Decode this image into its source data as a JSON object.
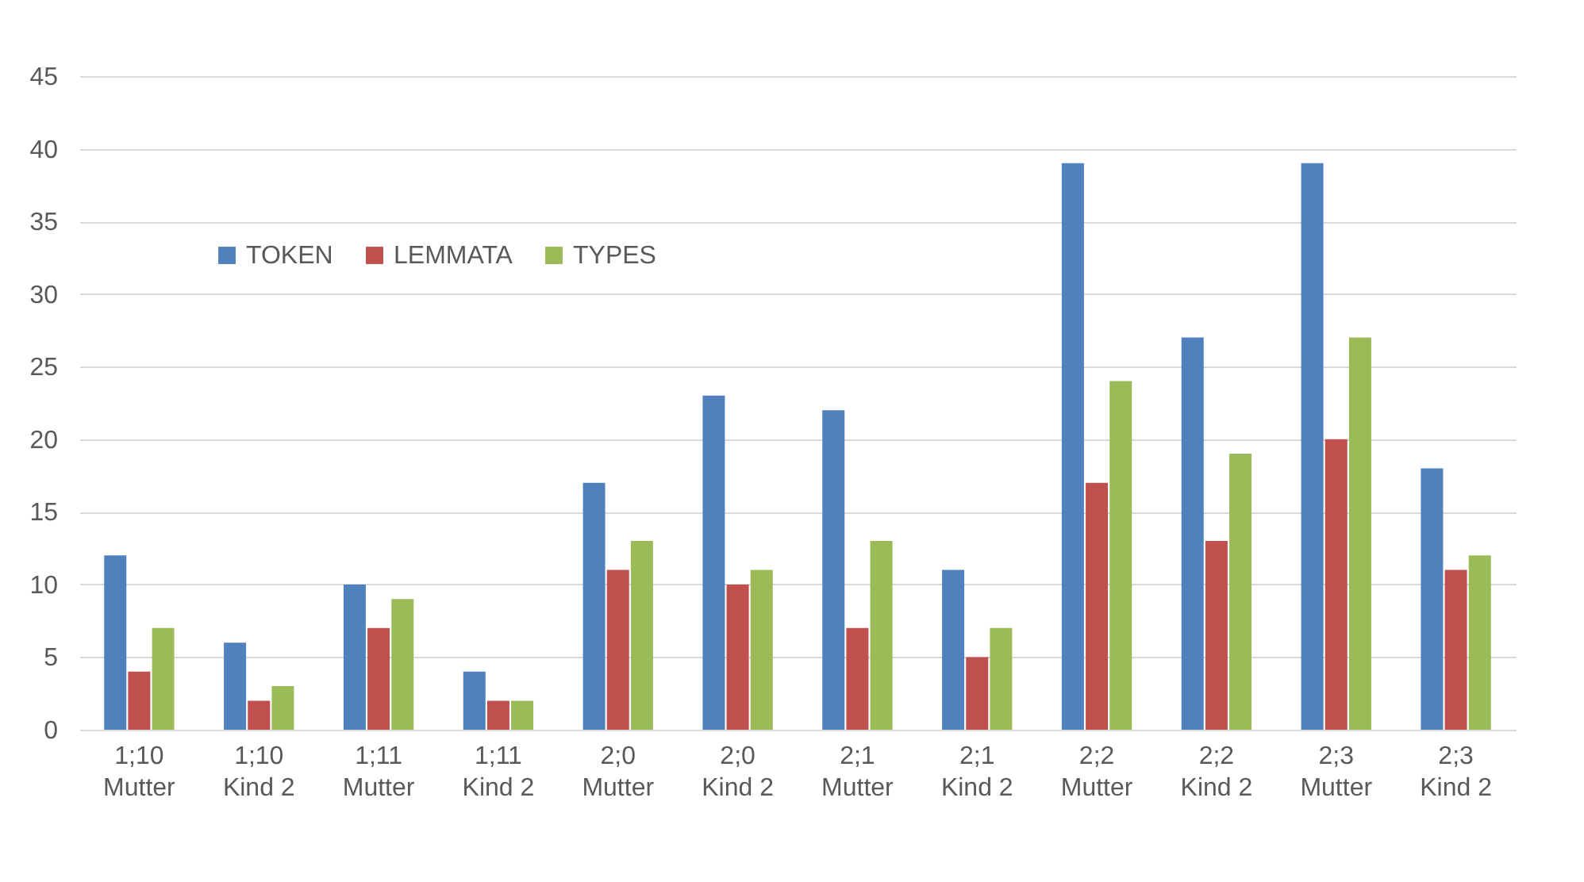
{
  "chart_data": {
    "type": "bar",
    "categories": [
      "1;10 Mutter",
      "1;10 Kind 2",
      "1;11 Mutter",
      "1;11 Kind 2",
      "2;0 Mutter",
      "2;0 Kind 2",
      "2;1 Mutter",
      "2;1 Kind 2",
      "2;2 Mutter",
      "2;2 Kind 2",
      "2;3 Mutter",
      "2;3 Kind 2"
    ],
    "series": [
      {
        "name": "TOKEN",
        "color": "#4f81bd",
        "values": [
          12,
          6,
          10,
          4,
          17,
          23,
          22,
          11,
          39,
          27,
          39,
          18
        ]
      },
      {
        "name": "LEMMATA",
        "color": "#c0504d",
        "values": [
          4,
          2,
          7,
          2,
          11,
          10,
          7,
          5,
          17,
          13,
          20,
          11
        ]
      },
      {
        "name": "TYPES",
        "color": "#9bbb59",
        "values": [
          7,
          3,
          9,
          2,
          13,
          11,
          13,
          7,
          24,
          19,
          27,
          12
        ]
      }
    ],
    "ylim": [
      0,
      45
    ],
    "yticks": [
      0,
      5,
      10,
      15,
      20,
      25,
      30,
      35,
      40,
      45
    ],
    "grid": "y",
    "legend": "top left"
  }
}
